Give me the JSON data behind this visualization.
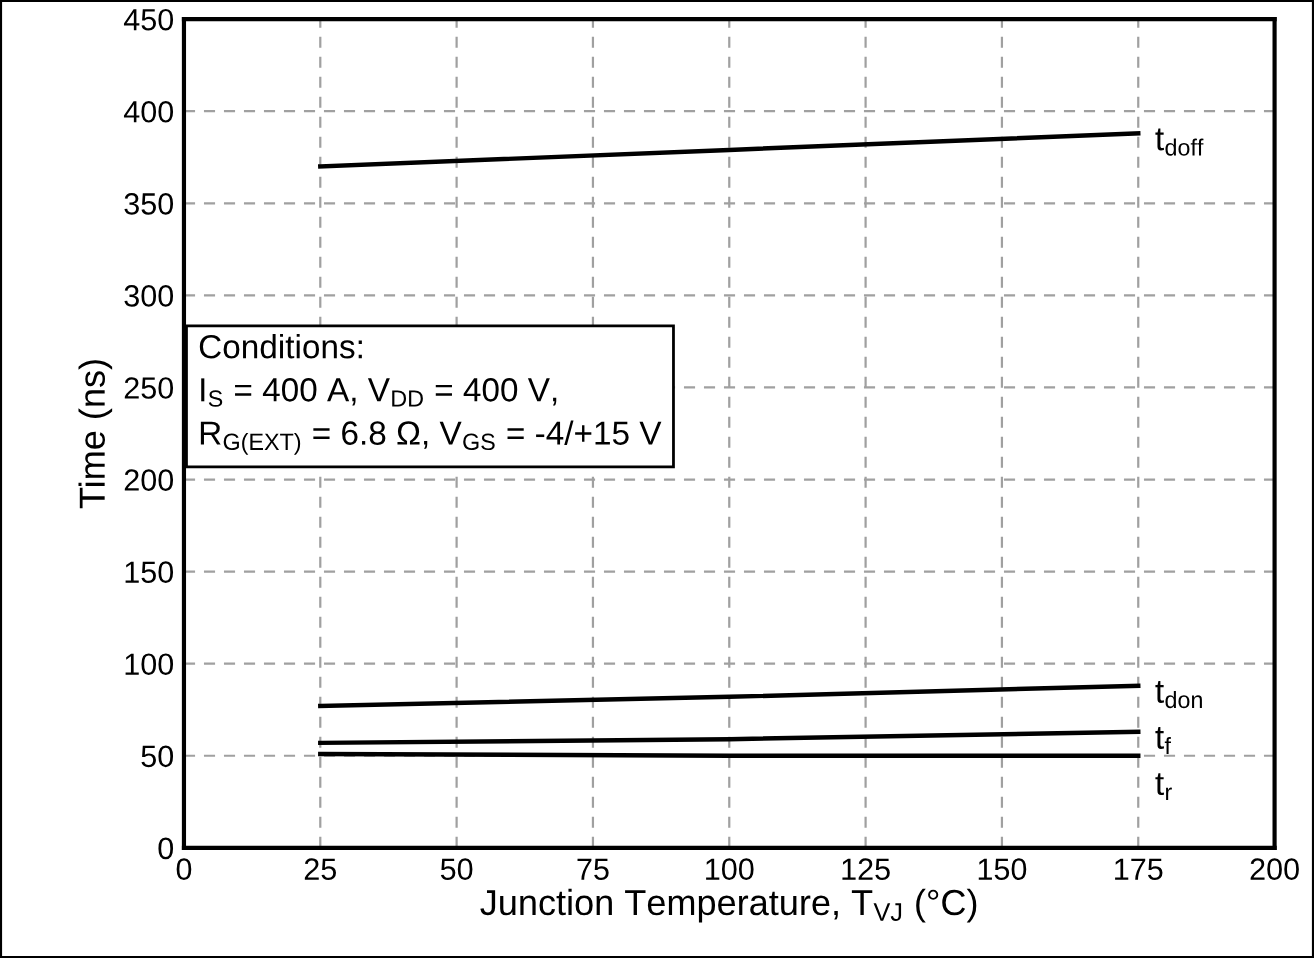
{
  "chart_data": {
    "type": "line",
    "xlabel": "Junction Temperature, T$_{VJ}$ (°C)",
    "ylabel": "Time (ns)",
    "x": [
      25,
      100,
      175
    ],
    "series": [
      {
        "name": "t$_{doff}$",
        "color": "#000000",
        "values": [
          370,
          379,
          388
        ]
      },
      {
        "name": "t$_{don}$",
        "color": "#000000",
        "values": [
          77,
          82,
          88
        ]
      },
      {
        "name": "t$_{f}$",
        "color": "#000000",
        "values": [
          57,
          59,
          63
        ]
      },
      {
        "name": "t$_{r}$",
        "color": "#000000",
        "values": [
          51,
          50,
          50
        ]
      }
    ],
    "xlim": [
      0,
      200
    ],
    "xticks": [
      0,
      25,
      50,
      75,
      100,
      125,
      150,
      175,
      200
    ],
    "ylim": [
      0,
      450
    ],
    "yticks": [
      0,
      50,
      100,
      150,
      200,
      250,
      300,
      350,
      400,
      450
    ],
    "grid": true,
    "legend": false,
    "marker": "none",
    "line_style": "solid",
    "annotations": [
      "Conditions:\nI$_{S}$ = 400 A, V$_{DD}$ = 400 V,\nR$_{G(EXT)}$ = 6.8 Ω, V$_{GS}$ = -4/+15 V"
    ]
  }
}
